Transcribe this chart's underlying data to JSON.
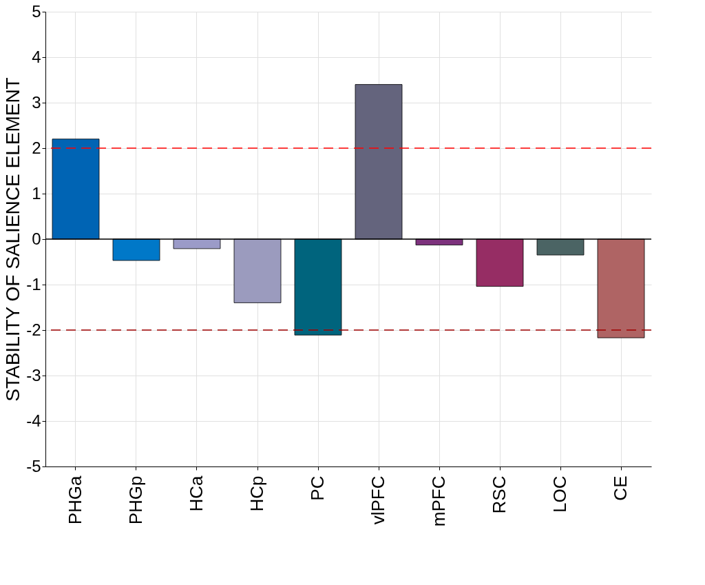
{
  "chart_data": {
    "type": "bar",
    "ylabel": "STABILITY OF SALIENCE ELEMENT",
    "categories": [
      "PHGa",
      "PHGp",
      "HCa",
      "HCp",
      "PC",
      "vlPFC",
      "mPFC",
      "RSC",
      "LOC",
      "CE"
    ],
    "values": [
      2.2,
      -0.47,
      -0.21,
      -1.4,
      -2.11,
      3.4,
      -0.13,
      -1.04,
      -0.35,
      -2.17
    ],
    "colors": [
      "#0064b4",
      "#0078c8",
      "#9b9bc8",
      "#9b9bbe",
      "#00647d",
      "#64647d",
      "#7d327d",
      "#962d64",
      "#4b6464",
      "#af6464"
    ],
    "ylim": [
      -5,
      5
    ],
    "yticks": [
      -5,
      -4,
      -3,
      -2,
      -1,
      0,
      1,
      2,
      3,
      4,
      5
    ],
    "grid": true,
    "ref_lines": [
      {
        "axis": "y",
        "value": 2,
        "color": "#ff0000",
        "line_style": "dashed"
      },
      {
        "axis": "y",
        "value": -2,
        "color": "#a00000",
        "line_style": "dashed"
      },
      {
        "axis": "y",
        "value": 0,
        "color": "#000000",
        "line_style": "solid"
      }
    ]
  }
}
